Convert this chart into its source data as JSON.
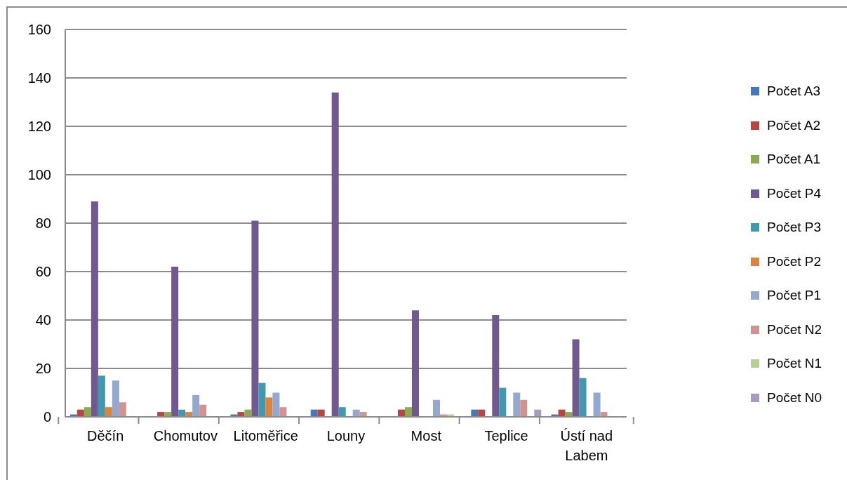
{
  "chart_data": {
    "type": "bar",
    "categories": [
      "Děčín",
      "Chomutov",
      "Litoměřice",
      "Louny",
      "Most",
      "Teplice",
      "Ústí nad Labem"
    ],
    "series": [
      {
        "name": "Počet A3",
        "color": "#4677b8",
        "values": [
          1,
          0,
          1,
          3,
          0,
          3,
          1
        ]
      },
      {
        "name": "Počet A2",
        "color": "#b94441",
        "values": [
          3,
          2,
          2,
          3,
          3,
          3,
          3
        ]
      },
      {
        "name": "Počet A1",
        "color": "#8cab4e",
        "values": [
          4,
          2,
          3,
          0,
          4,
          0,
          2
        ]
      },
      {
        "name": "Počet P4",
        "color": "#71588f",
        "values": [
          89,
          62,
          81,
          134,
          44,
          42,
          32
        ]
      },
      {
        "name": "Počet P3",
        "color": "#4198af",
        "values": [
          17,
          3,
          14,
          4,
          0,
          12,
          16
        ]
      },
      {
        "name": "Počet P2",
        "color": "#db843d",
        "values": [
          4,
          2,
          8,
          0,
          0,
          0,
          0
        ]
      },
      {
        "name": "Počet P1",
        "color": "#93a9cf",
        "values": [
          15,
          9,
          10,
          3,
          7,
          10,
          10
        ]
      },
      {
        "name": "Počet N2",
        "color": "#d19392",
        "values": [
          6,
          5,
          4,
          2,
          1,
          7,
          2
        ]
      },
      {
        "name": "Počet N1",
        "color": "#b9cd96",
        "values": [
          0,
          0,
          0,
          0,
          1,
          0,
          0
        ]
      },
      {
        "name": "Počet N0",
        "color": "#a99bbd",
        "values": [
          0,
          0,
          0,
          0,
          0,
          3,
          0
        ]
      }
    ],
    "ylim": [
      0,
      160
    ],
    "yticks": [
      0,
      20,
      40,
      60,
      80,
      100,
      120,
      140,
      160
    ],
    "grid": "y",
    "legend": "right"
  }
}
